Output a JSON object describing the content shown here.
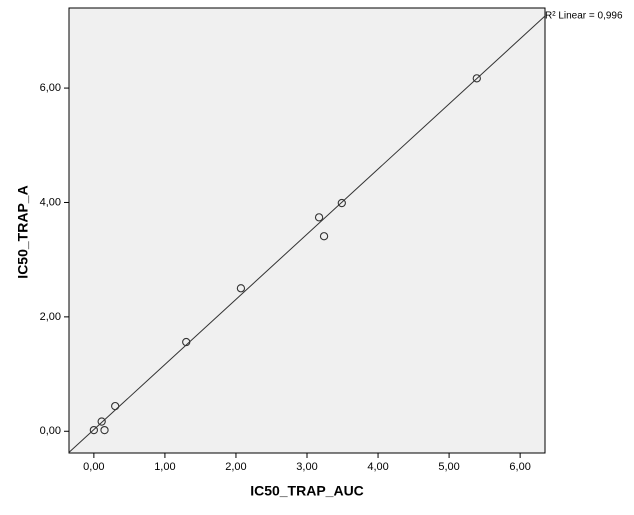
{
  "chart_data": {
    "type": "scatter",
    "x_label": "IC50_TRAP_AUC",
    "y_label": "IC50_TRAP_A",
    "x": [
      0.0,
      0.15,
      0.11,
      0.3,
      1.3,
      2.07,
      3.17,
      3.24,
      3.49,
      5.39
    ],
    "y": [
      0.02,
      0.02,
      0.17,
      0.44,
      1.56,
      2.5,
      3.74,
      3.41,
      3.99,
      6.17
    ],
    "xlim": [
      -0.35,
      6.35
    ],
    "ylim": [
      -0.38,
      7.4
    ],
    "xticks": [
      {
        "value": 0,
        "label": "0,00"
      },
      {
        "value": 1,
        "label": "1,00"
      },
      {
        "value": 2,
        "label": "2,00"
      },
      {
        "value": 3,
        "label": "3,00"
      },
      {
        "value": 4,
        "label": "4,00"
      },
      {
        "value": 5,
        "label": "5,00"
      },
      {
        "value": 6,
        "label": "6,00"
      }
    ],
    "yticks": [
      {
        "value": 0,
        "label": "0,00"
      },
      {
        "value": 2,
        "label": "2,00"
      },
      {
        "value": 4,
        "label": "4,00"
      },
      {
        "value": 6,
        "label": "6,00"
      }
    ],
    "fit": {
      "x": [
        -0.35,
        6.35
      ],
      "y": [
        -0.37,
        7.26
      ]
    },
    "annotation": "R² Linear = 0,996",
    "marker_color": "#333333",
    "plot_background": "#f0f0f0"
  }
}
